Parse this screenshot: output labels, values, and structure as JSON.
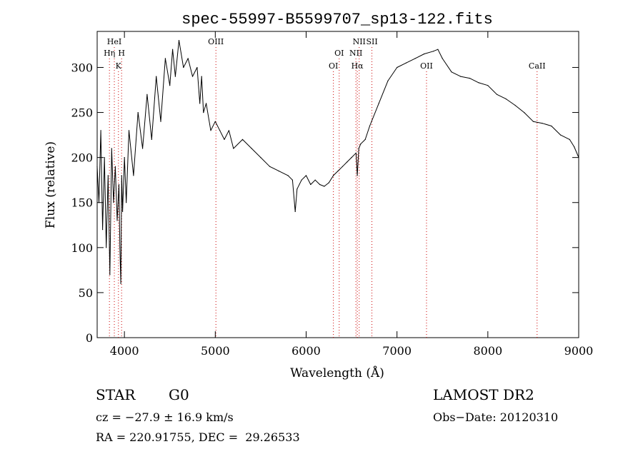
{
  "chart_data": {
    "type": "line",
    "title": "spec-55997-B5599707_sp13-122.fits",
    "xlabel": "Wavelength (Å)",
    "ylabel": "Flux (relative)",
    "xlim": [
      3700,
      9000
    ],
    "ylim": [
      0,
      340
    ],
    "x_ticks": [
      4000,
      5000,
      6000,
      7000,
      8000,
      9000
    ],
    "y_ticks": [
      0,
      50,
      100,
      150,
      200,
      250,
      300
    ],
    "line_color": "#000000",
    "marker_color": "#cc0000",
    "spectrum": {
      "x": [
        3700,
        3720,
        3740,
        3760,
        3780,
        3800,
        3820,
        3840,
        3860,
        3880,
        3900,
        3920,
        3940,
        3950,
        3960,
        3970,
        3980,
        4000,
        4020,
        4050,
        4100,
        4150,
        4200,
        4250,
        4300,
        4350,
        4400,
        4450,
        4500,
        4530,
        4560,
        4600,
        4650,
        4700,
        4750,
        4800,
        4830,
        4850,
        4870,
        4900,
        4950,
        5000,
        5050,
        5100,
        5150,
        5200,
        5300,
        5400,
        5500,
        5600,
        5700,
        5800,
        5850,
        5880,
        5900,
        5950,
        6000,
        6050,
        6100,
        6150,
        6200,
        6250,
        6300,
        6350,
        6400,
        6450,
        6500,
        6550,
        6563,
        6580,
        6600,
        6650,
        6700,
        6800,
        6900,
        7000,
        7100,
        7200,
        7300,
        7400,
        7450,
        7500,
        7600,
        7700,
        7800,
        7900,
        8000,
        8100,
        8200,
        8300,
        8400,
        8500,
        8600,
        8700,
        8800,
        8900,
        8950,
        9000
      ],
      "y": [
        190,
        150,
        230,
        120,
        200,
        100,
        180,
        70,
        210,
        150,
        190,
        130,
        170,
        100,
        60,
        180,
        140,
        200,
        150,
        230,
        180,
        250,
        210,
        270,
        220,
        290,
        240,
        310,
        280,
        320,
        290,
        330,
        300,
        310,
        290,
        300,
        260,
        290,
        250,
        260,
        230,
        240,
        230,
        220,
        230,
        210,
        220,
        210,
        200,
        190,
        185,
        180,
        175,
        140,
        165,
        175,
        180,
        170,
        175,
        170,
        168,
        172,
        180,
        185,
        190,
        195,
        200,
        205,
        180,
        210,
        215,
        220,
        235,
        260,
        285,
        300,
        305,
        310,
        315,
        318,
        320,
        310,
        295,
        290,
        288,
        283,
        280,
        270,
        265,
        258,
        250,
        240,
        238,
        235,
        225,
        220,
        212,
        200
      ]
    },
    "lines": [
      {
        "label": "HeI",
        "x": 3889,
        "row": 0
      },
      {
        "label": "Hη",
        "x": 3835,
        "row": 1
      },
      {
        "label": "H",
        "x": 3969,
        "row": 1
      },
      {
        "label": "K",
        "x": 3934,
        "row": 2
      },
      {
        "label": "OIII",
        "x": 5007,
        "row": 0
      },
      {
        "label": "OI",
        "x": 6364,
        "row": 1
      },
      {
        "label": "OI",
        "x": 6300,
        "row": 2
      },
      {
        "label": "NII",
        "x": 6584,
        "row": 0
      },
      {
        "label": "NII",
        "x": 6548,
        "row": 1
      },
      {
        "label": "Hα",
        "x": 6563,
        "row": 2
      },
      {
        "label": "SII",
        "x": 6724,
        "row": 0
      },
      {
        "label": "OII",
        "x": 7325,
        "row": 2
      },
      {
        "label": "CaII",
        "x": 8542,
        "row": 2
      }
    ]
  },
  "info": {
    "object_class": "STAR",
    "subclass": "G0",
    "survey": "LAMOST DR2",
    "cz": "cz = −27.9 ± 16.9 km/s",
    "obs_date": "Obs−Date: 20120310",
    "coords": "RA = 220.91755, DEC =  29.26533"
  }
}
